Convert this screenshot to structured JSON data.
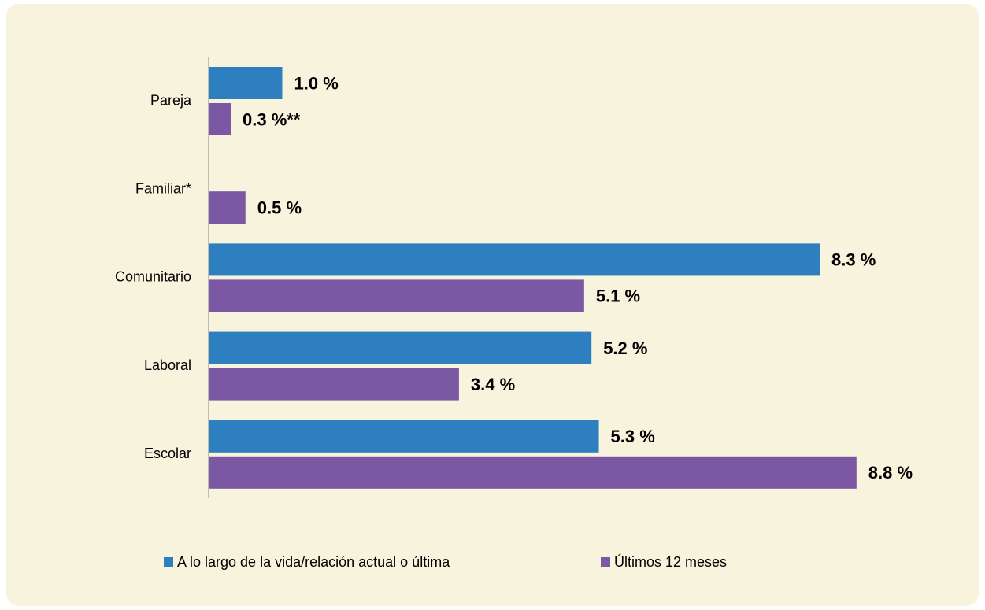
{
  "chart_data": {
    "type": "hbar",
    "categories": [
      "Pareja",
      "Familiar*",
      "Comunitario",
      "Laboral",
      "Escolar"
    ],
    "series": [
      {
        "name": "A lo largo de la vida/relación actual o última",
        "color": "#2e7fbf",
        "values": [
          1.0,
          null,
          8.3,
          5.2,
          5.3
        ],
        "value_labels": [
          "1.0 %",
          null,
          "8.3 %",
          "5.2 %",
          "5.3 %"
        ]
      },
      {
        "name": "Últimos 12 meses",
        "color": "#7b58a3",
        "values": [
          0.3,
          0.5,
          5.1,
          3.4,
          8.8
        ],
        "value_labels": [
          "0.3 %**",
          "0.5 %",
          "5.1 %",
          "3.4 %",
          "8.8 %"
        ]
      }
    ],
    "xlim": [
      0,
      10
    ],
    "legend": "bottom"
  }
}
